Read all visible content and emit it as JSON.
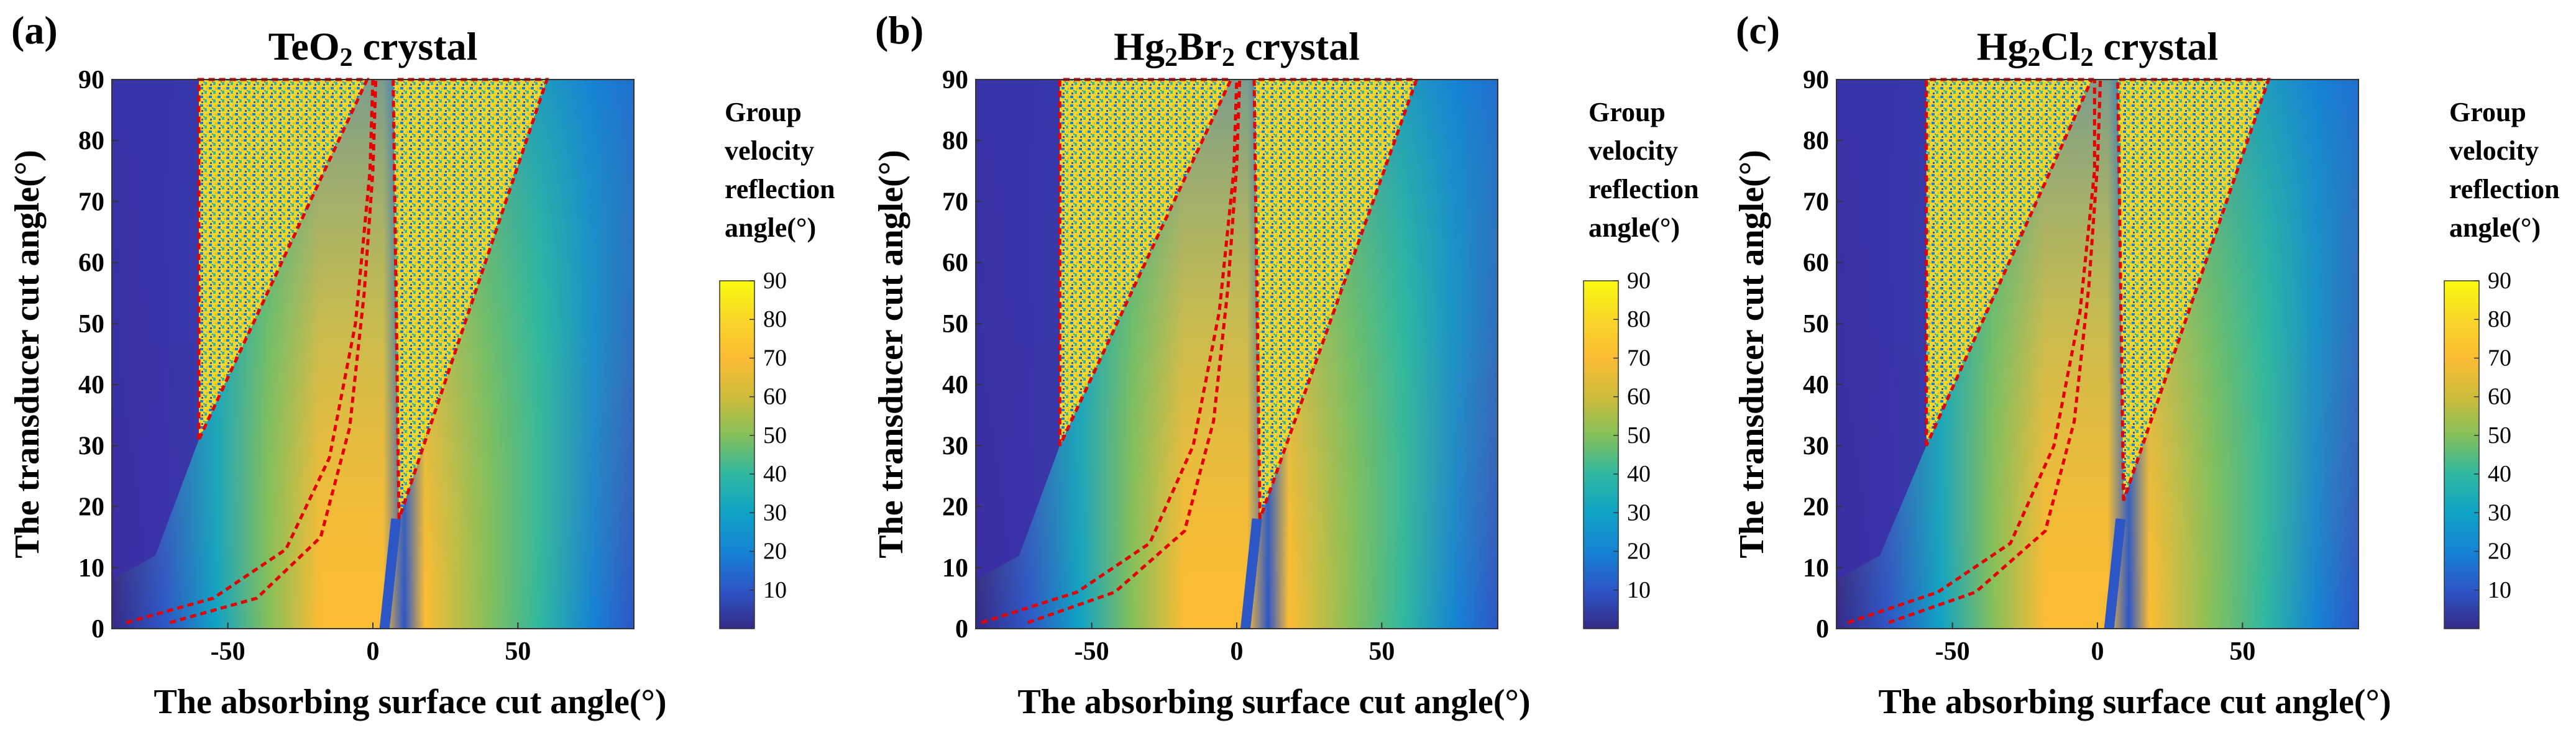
{
  "figure": {
    "colors": {
      "colormap": [
        "#352a87",
        "#2d56c7",
        "#1583d4",
        "#0fa3c5",
        "#2fb8a0",
        "#84c05a",
        "#cebb3a",
        "#fbbc34",
        "#f9d628",
        "#f9fb0e"
      ],
      "low_region": "#3b2fa6",
      "boundary_line": "#e60000"
    }
  },
  "chart_data": [
    {
      "panel": "(a)",
      "title": "TeO",
      "title_parts": [
        {
          "text": "TeO"
        },
        {
          "text": "2",
          "sub": true
        },
        {
          "text": " crystal"
        }
      ],
      "type": "heatmap",
      "xlabel": "The absorbing surface cut angle(°)",
      "ylabel": "The transducer cut angle(°)",
      "xlim": [
        -90,
        90
      ],
      "ylim": [
        0,
        90
      ],
      "xticks": [
        -50,
        0,
        50
      ],
      "yticks": [
        0,
        10,
        20,
        30,
        40,
        50,
        60,
        70,
        80,
        90
      ],
      "colorbar": {
        "title_lines": [
          "Group",
          "velocity",
          "reflection",
          "angle(°)"
        ],
        "ticks": [
          10,
          20,
          30,
          40,
          50,
          60,
          70,
          80,
          90
        ],
        "range": [
          0,
          90
        ]
      },
      "regions": {
        "left_trapezoid": [
          [
            -60,
            31
          ],
          [
            -60,
            90
          ],
          [
            -2,
            90
          ]
        ],
        "right_triangle": [
          [
            9,
            18
          ],
          [
            7,
            90
          ],
          [
            60,
            90
          ]
        ],
        "inner_curve_left": [
          [
            -85,
            1
          ],
          [
            -55,
            5
          ],
          [
            -30,
            13
          ],
          [
            -15,
            28
          ],
          [
            -6,
            50
          ],
          [
            -1,
            75
          ],
          [
            0,
            90
          ]
        ],
        "inner_curve_right": [
          [
            -70,
            1
          ],
          [
            -40,
            5
          ],
          [
            -18,
            15
          ],
          [
            -8,
            33
          ],
          [
            -3,
            55
          ],
          [
            0,
            75
          ],
          [
            1,
            90
          ]
        ],
        "vertical_band": [
          [
            7,
            0
          ],
          [
            7,
            90
          ]
        ]
      }
    },
    {
      "panel": "(b)",
      "title": "Hg",
      "title_parts": [
        {
          "text": "Hg"
        },
        {
          "text": "2",
          "sub": true
        },
        {
          "text": "Br"
        },
        {
          "text": "2",
          "sub": true
        },
        {
          "text": " crystal"
        }
      ],
      "type": "heatmap",
      "xlabel": "The absorbing surface cut angle(°)",
      "ylabel": "The transducer cut angle(°)",
      "xlim": [
        -90,
        90
      ],
      "ylim": [
        0,
        90
      ],
      "xticks": [
        -50,
        0,
        50
      ],
      "yticks": [
        0,
        10,
        20,
        30,
        40,
        50,
        60,
        70,
        80,
        90
      ],
      "colorbar": {
        "title_lines": [
          "Group",
          "velocity",
          "reflection",
          "angle(°)"
        ],
        "ticks": [
          10,
          20,
          30,
          40,
          50,
          60,
          70,
          80,
          90
        ],
        "range": [
          0,
          90
        ]
      },
      "regions": {
        "left_trapezoid": [
          [
            -61,
            30
          ],
          [
            -61,
            90
          ],
          [
            -2,
            90
          ]
        ],
        "right_triangle": [
          [
            8,
            18
          ],
          [
            6,
            90
          ],
          [
            62,
            90
          ]
        ],
        "inner_curve_left": [
          [
            -88,
            1
          ],
          [
            -55,
            6
          ],
          [
            -30,
            14
          ],
          [
            -15,
            30
          ],
          [
            -6,
            52
          ],
          [
            -1,
            75
          ],
          [
            0,
            90
          ]
        ],
        "inner_curve_right": [
          [
            -72,
            1
          ],
          [
            -42,
            6
          ],
          [
            -18,
            16
          ],
          [
            -8,
            34
          ],
          [
            -3,
            56
          ],
          [
            0,
            76
          ],
          [
            1,
            90
          ]
        ],
        "vertical_band": [
          [
            6,
            0
          ],
          [
            6,
            90
          ]
        ]
      }
    },
    {
      "panel": "(c)",
      "title": "Hg",
      "title_parts": [
        {
          "text": "Hg"
        },
        {
          "text": "2",
          "sub": true
        },
        {
          "text": "Cl"
        },
        {
          "text": "2",
          "sub": true
        },
        {
          "text": " crystal"
        }
      ],
      "type": "heatmap",
      "xlabel": "The absorbing surface cut angle(°)",
      "ylabel": "The transducer cut angle(°)",
      "xlim": [
        -90,
        90
      ],
      "ylim": [
        0,
        90
      ],
      "xticks": [
        -50,
        0,
        50
      ],
      "yticks": [
        0,
        10,
        20,
        30,
        40,
        50,
        60,
        70,
        80,
        90
      ],
      "colorbar": {
        "title_lines": [
          "Group",
          "velocity",
          "reflection",
          "angle(°)"
        ],
        "ticks": [
          10,
          20,
          30,
          40,
          50,
          60,
          70,
          80,
          90
        ],
        "range": [
          0,
          90
        ]
      },
      "regions": {
        "left_trapezoid": [
          [
            -59,
            30
          ],
          [
            -59,
            90
          ],
          [
            -2,
            90
          ]
        ],
        "right_triangle": [
          [
            9,
            21
          ],
          [
            7,
            90
          ],
          [
            59,
            90
          ]
        ],
        "inner_curve_left": [
          [
            -86,
            1
          ],
          [
            -55,
            6
          ],
          [
            -30,
            14
          ],
          [
            -15,
            30
          ],
          [
            -6,
            52
          ],
          [
            -1,
            75
          ],
          [
            -1,
            90
          ]
        ],
        "inner_curve_right": [
          [
            -72,
            1
          ],
          [
            -42,
            6
          ],
          [
            -18,
            16
          ],
          [
            -8,
            34
          ],
          [
            -3,
            56
          ],
          [
            0,
            76
          ],
          [
            1,
            90
          ]
        ],
        "vertical_band": [
          [
            7,
            0
          ],
          [
            7,
            90
          ]
        ]
      }
    }
  ]
}
